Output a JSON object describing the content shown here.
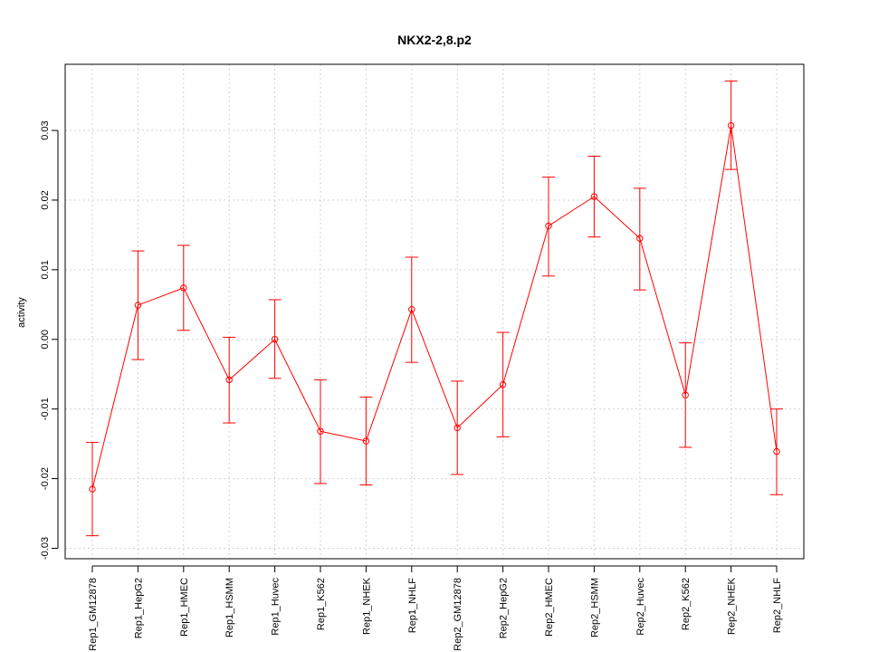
{
  "chart_data": {
    "type": "line",
    "title": "NKX2-2,8.p2",
    "xlabel": "",
    "ylabel": "activity",
    "ylim": [
      -0.0315,
      0.0395
    ],
    "yticks": [
      -0.03,
      -0.02,
      -0.01,
      0.0,
      0.01,
      0.02,
      0.03
    ],
    "ytick_labels": [
      "-0.03",
      "-0.02",
      "-0.01",
      "0.00",
      "0.01",
      "0.02",
      "0.03"
    ],
    "grid": true,
    "categories": [
      "Rep1_GM12878",
      "Rep1_HepG2",
      "Rep1_HMEC",
      "Rep1_HSMM",
      "Rep1_Huvec",
      "Rep1_K562",
      "Rep1_NHEK",
      "Rep1_NHLF",
      "Rep2_GM12878",
      "Rep2_HepG2",
      "Rep2_HMEC",
      "Rep2_HSMM",
      "Rep2_Huvec",
      "Rep2_K562",
      "Rep2_NHEK",
      "Rep2_NHLF"
    ],
    "series": [
      {
        "values": [
          -0.0215,
          0.0049,
          0.0074,
          -0.0058,
          0.0,
          -0.0132,
          -0.0146,
          0.0043,
          -0.0127,
          -0.0065,
          0.0163,
          0.0205,
          0.0145,
          -0.008,
          0.0307,
          -0.0161
        ],
        "error_low": [
          -0.0282,
          -0.0029,
          0.0013,
          -0.012,
          -0.0056,
          -0.0207,
          -0.0209,
          -0.0033,
          -0.0194,
          -0.014,
          0.0091,
          0.0147,
          0.0071,
          -0.0155,
          0.0244,
          -0.0223
        ],
        "error_high": [
          -0.0148,
          0.0127,
          0.0135,
          0.0003,
          0.0057,
          -0.0058,
          -0.0083,
          0.0118,
          -0.006,
          0.001,
          0.0233,
          0.0263,
          0.0217,
          -0.0005,
          0.0371,
          -0.01
        ],
        "color": "#ff0000"
      }
    ]
  }
}
